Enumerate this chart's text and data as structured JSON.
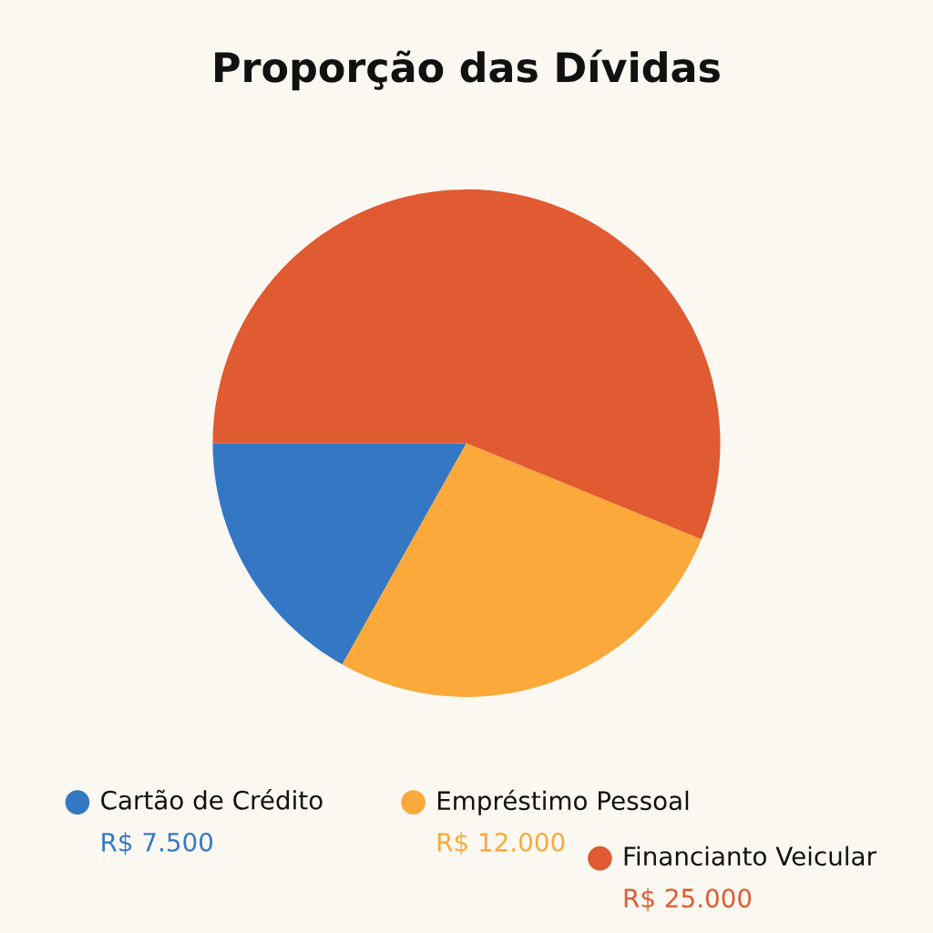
{
  "chart_data": {
    "type": "pie",
    "title": "Proporção das Dívidas",
    "categories": [
      "Cartão de Crédito",
      "Empréstimo Pessoal",
      "Financianto Veicular"
    ],
    "values": [
      7500,
      12000,
      25000
    ],
    "colors": [
      "#3478c4",
      "#fba93a",
      "#e05a32"
    ],
    "value_labels": [
      "R$ 7.500",
      "R$ 12.000",
      "R$ 25.000"
    ],
    "legend": "bottom"
  }
}
